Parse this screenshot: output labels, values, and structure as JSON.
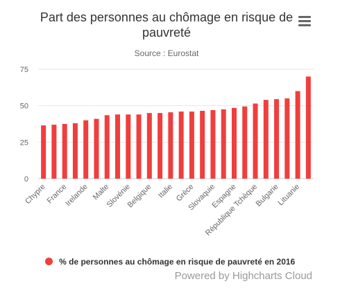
{
  "title": "Part des personnes au chômage en risque de pauvreté",
  "subtitle": "Source : Eurostat",
  "menu_icon": "hamburger-menu-icon",
  "credits": "Powered by Highcharts Cloud",
  "colors": {
    "series": "#f03e3e",
    "grid": "#e6e6e6",
    "axis": "#666666"
  },
  "chart_data": {
    "type": "bar",
    "title": "Part des personnes au chômage en risque de pauvreté",
    "subtitle": "Source : Eurostat",
    "ylim": [
      0,
      75
    ],
    "yticks": [
      0,
      25,
      50,
      75
    ],
    "grid": true,
    "legend_position": "bottom",
    "categories": [
      "Chypre",
      "",
      "France",
      "",
      "Irelande",
      "",
      "Malte",
      "",
      "Slovénie",
      "",
      "Belgique",
      "",
      "Italie",
      "",
      "Grèce",
      "",
      "Slovaquie",
      "",
      "Espagne",
      "",
      "République Tchèque",
      "",
      "Bulgarie",
      "",
      "Lituanie",
      ""
    ],
    "series": [
      {
        "name": "% de personnes au chômage en risque de pauvreté en 2016",
        "values": [
          36.5,
          37,
          37.5,
          38,
          40,
          41,
          43.5,
          44,
          44,
          44,
          45,
          45,
          45.5,
          46,
          46,
          46.5,
          47,
          47.5,
          48.5,
          49.5,
          51.5,
          54,
          54.5,
          55,
          60,
          70
        ]
      }
    ]
  }
}
